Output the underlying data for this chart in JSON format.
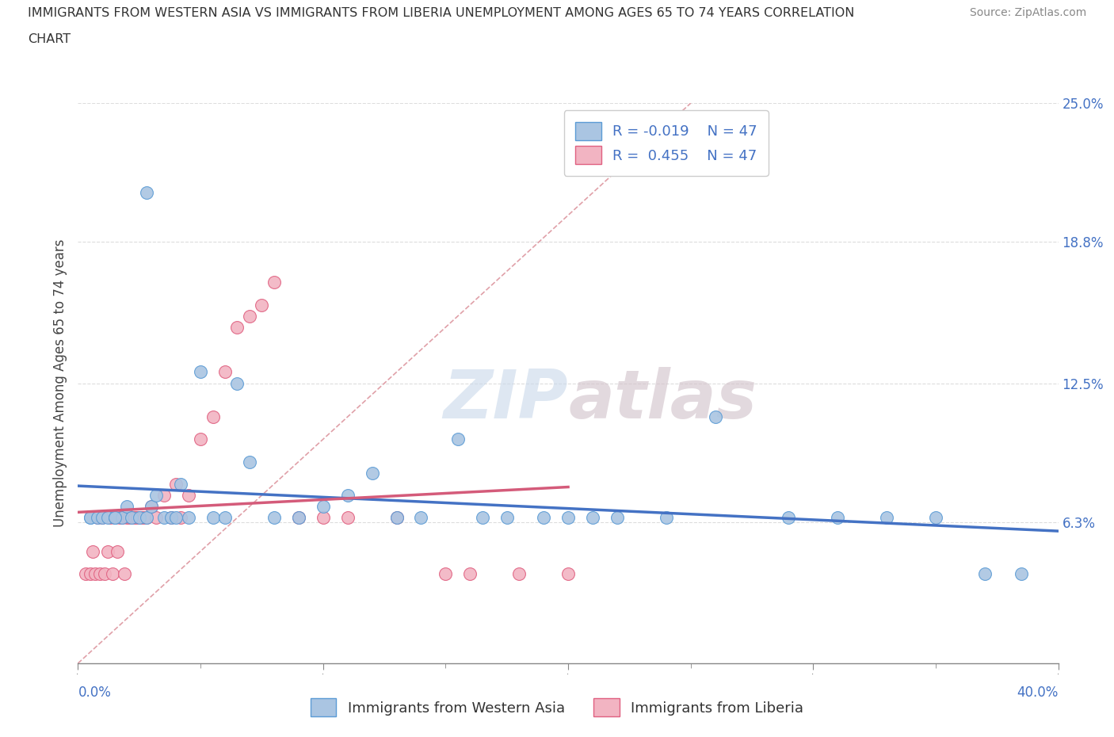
{
  "title_line1": "IMMIGRANTS FROM WESTERN ASIA VS IMMIGRANTS FROM LIBERIA UNEMPLOYMENT AMONG AGES 65 TO 74 YEARS CORRELATION",
  "title_line2": "CHART",
  "source": "Source: ZipAtlas.com",
  "ylabel": "Unemployment Among Ages 65 to 74 years",
  "xlim": [
    0.0,
    0.4
  ],
  "ylim": [
    0.0,
    0.25
  ],
  "yticks": [
    0.0,
    0.063,
    0.125,
    0.188,
    0.25
  ],
  "ytick_labels": [
    "",
    "6.3%",
    "12.5%",
    "18.8%",
    "25.0%"
  ],
  "xtick_major": [
    0.0,
    0.1,
    0.2,
    0.3,
    0.4
  ],
  "xtick_labels_left": "0.0%",
  "xtick_labels_right": "40.0%",
  "R_western": -0.019,
  "N_western": 47,
  "R_liberia": 0.455,
  "N_liberia": 47,
  "color_western_fill": "#aac5e2",
  "color_western_edge": "#5b9bd5",
  "color_liberia_fill": "#f2b4c2",
  "color_liberia_edge": "#e06080",
  "color_line_western": "#4472c4",
  "color_line_liberia": "#d45b7a",
  "color_diag": "#e0a0a8",
  "watermark_color": "#c8d8ea",
  "watermark_color2": "#d0c0c8",
  "western_x": [
    0.028,
    0.005,
    0.005,
    0.008,
    0.01,
    0.012,
    0.015,
    0.018,
    0.02,
    0.022,
    0.025,
    0.028,
    0.03,
    0.032,
    0.035,
    0.038,
    0.04,
    0.042,
    0.045,
    0.05,
    0.055,
    0.06,
    0.065,
    0.07,
    0.08,
    0.09,
    0.1,
    0.11,
    0.12,
    0.13,
    0.14,
    0.155,
    0.165,
    0.175,
    0.19,
    0.2,
    0.21,
    0.22,
    0.24,
    0.26,
    0.29,
    0.31,
    0.33,
    0.35,
    0.37,
    0.385,
    0.015
  ],
  "western_y": [
    0.21,
    0.065,
    0.065,
    0.065,
    0.065,
    0.065,
    0.065,
    0.065,
    0.07,
    0.065,
    0.065,
    0.065,
    0.07,
    0.075,
    0.065,
    0.065,
    0.065,
    0.08,
    0.065,
    0.13,
    0.065,
    0.065,
    0.125,
    0.09,
    0.065,
    0.065,
    0.07,
    0.075,
    0.085,
    0.065,
    0.065,
    0.1,
    0.065,
    0.065,
    0.065,
    0.065,
    0.065,
    0.065,
    0.065,
    0.11,
    0.065,
    0.065,
    0.065,
    0.065,
    0.04,
    0.04,
    0.065
  ],
  "liberia_x": [
    0.003,
    0.005,
    0.006,
    0.007,
    0.008,
    0.009,
    0.01,
    0.011,
    0.012,
    0.013,
    0.014,
    0.015,
    0.016,
    0.017,
    0.018,
    0.019,
    0.02,
    0.021,
    0.022,
    0.023,
    0.024,
    0.025,
    0.026,
    0.027,
    0.028,
    0.03,
    0.032,
    0.035,
    0.038,
    0.04,
    0.042,
    0.045,
    0.05,
    0.055,
    0.06,
    0.065,
    0.07,
    0.075,
    0.08,
    0.09,
    0.1,
    0.11,
    0.13,
    0.15,
    0.16,
    0.18,
    0.2
  ],
  "liberia_y": [
    0.04,
    0.04,
    0.05,
    0.04,
    0.065,
    0.04,
    0.065,
    0.04,
    0.05,
    0.065,
    0.04,
    0.065,
    0.05,
    0.065,
    0.065,
    0.04,
    0.065,
    0.065,
    0.065,
    0.065,
    0.065,
    0.065,
    0.065,
    0.065,
    0.065,
    0.07,
    0.065,
    0.075,
    0.065,
    0.08,
    0.065,
    0.075,
    0.1,
    0.11,
    0.13,
    0.15,
    0.155,
    0.16,
    0.17,
    0.065,
    0.065,
    0.065,
    0.065,
    0.04,
    0.04,
    0.04,
    0.04
  ]
}
